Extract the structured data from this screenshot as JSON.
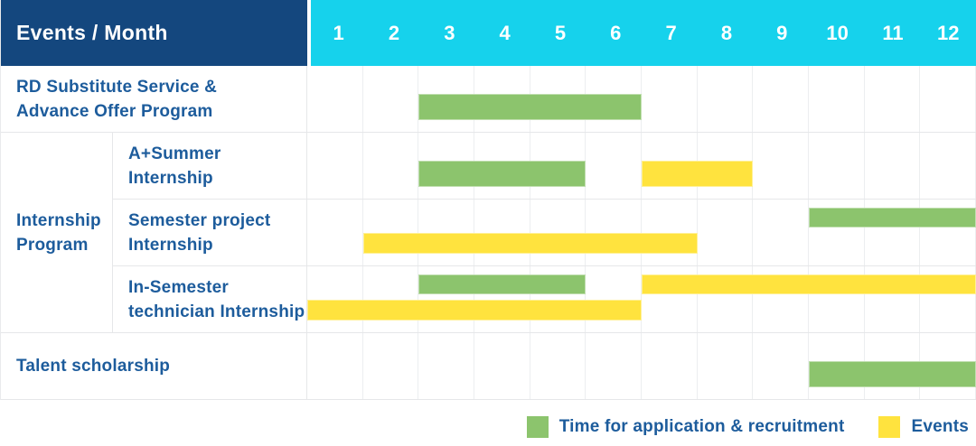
{
  "header": {
    "events_month_label": "Events / Month",
    "months": [
      "1",
      "2",
      "3",
      "4",
      "5",
      "6",
      "7",
      "8",
      "9",
      "10",
      "11",
      "12"
    ]
  },
  "colors": {
    "header_bg": "#14477E",
    "months_bg": "#16D2EC",
    "recruitment": "#8CC46D",
    "event": "#FFE33E",
    "label_text": "#1D5C9C",
    "header_text": "#FFFFFF",
    "grid_line": "#E9EAEC"
  },
  "chart_data": {
    "type": "bar",
    "variant": "gantt-table",
    "title": "Events / Month",
    "x_categories": [
      "1",
      "2",
      "3",
      "4",
      "5",
      "6",
      "7",
      "8",
      "9",
      "10",
      "11",
      "12"
    ],
    "x_range": [
      1,
      12
    ],
    "grid": true,
    "legend_position": "bottom-right",
    "group_label_lines": [
      "Internship",
      "Program"
    ],
    "rows": [
      {
        "group": "",
        "label": "RD Substitute Service & Advance Offer Program",
        "label_lines": [
          "RD Substitute Service &",
          "Advance Offer Program"
        ],
        "bars": [
          {
            "kind": "recruitment",
            "start_month": 3,
            "end_month": 6,
            "lane": "single"
          }
        ]
      },
      {
        "group": "Internship Program",
        "label": "A+Summer Internship",
        "label_lines": [
          "A+Summer",
          "Internship"
        ],
        "bars": [
          {
            "kind": "recruitment",
            "start_month": 3,
            "end_month": 5,
            "lane": "single"
          },
          {
            "kind": "event",
            "start_month": 7,
            "end_month": 8,
            "lane": "single"
          }
        ]
      },
      {
        "group": "Internship Program",
        "label": "Semester project Internship",
        "label_lines": [
          "Semester project",
          "Internship"
        ],
        "bars": [
          {
            "kind": "recruitment",
            "start_month": 10,
            "end_month": 12,
            "lane": "top"
          },
          {
            "kind": "event",
            "start_month": 2,
            "end_month": 7,
            "lane": "bottom"
          }
        ]
      },
      {
        "group": "Internship Program",
        "label": "In-Semester technician Internship",
        "label_lines": [
          "In-Semester",
          "technician Internship"
        ],
        "bars": [
          {
            "kind": "recruitment",
            "start_month": 3,
            "end_month": 5,
            "lane": "top"
          },
          {
            "kind": "event",
            "start_month": 7,
            "end_month": 12,
            "lane": "top"
          },
          {
            "kind": "event",
            "start_month": 1,
            "end_month": 6,
            "lane": "bottom"
          }
        ]
      },
      {
        "group": "",
        "label": "Talent scholarship",
        "label_lines": [
          "Talent scholarship"
        ],
        "bars": [
          {
            "kind": "recruitment",
            "start_month": 10,
            "end_month": 12,
            "lane": "single"
          }
        ]
      }
    ],
    "legend": [
      {
        "kind": "recruitment",
        "label": "Time for application & recruitment",
        "color": "#8CC46D"
      },
      {
        "kind": "event",
        "label": "Events",
        "color": "#FFE33E"
      }
    ]
  }
}
